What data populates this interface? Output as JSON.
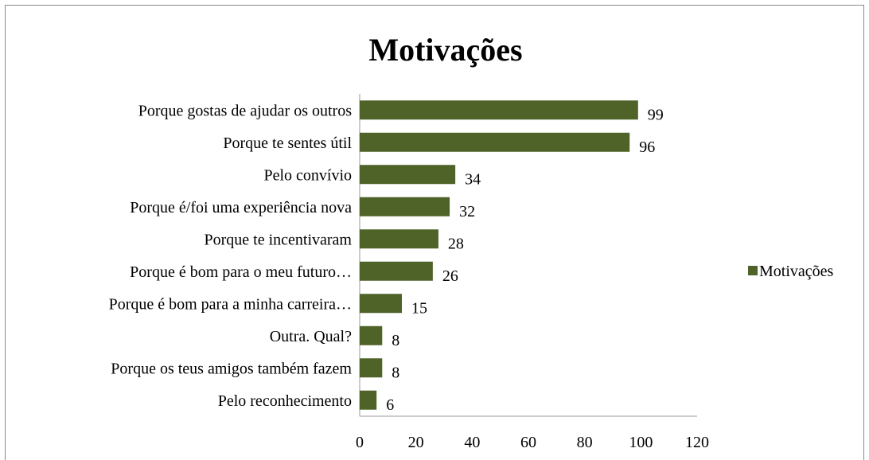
{
  "chart_data": {
    "type": "bar",
    "orientation": "horizontal",
    "title": "Motivações",
    "categories": [
      "Porque gostas de ajudar os outros",
      "Porque te sentes útil",
      "Pelo convívio",
      "Porque é/foi uma experiência nova",
      "Porque te incentivaram",
      "Porque é bom para o meu futuro…",
      "Porque é bom para a minha carreira…",
      "Outra. Qual?",
      "Porque os teus amigos também fazem",
      "Pelo reconhecimento"
    ],
    "series": [
      {
        "name": "Motivações",
        "color": "#4f6228",
        "values": [
          99,
          96,
          34,
          32,
          28,
          26,
          15,
          8,
          8,
          6
        ]
      }
    ],
    "xlim": [
      0,
      120
    ],
    "xticks": [
      0,
      20,
      40,
      60,
      80,
      100,
      120
    ],
    "grid": false,
    "legend": "right"
  }
}
